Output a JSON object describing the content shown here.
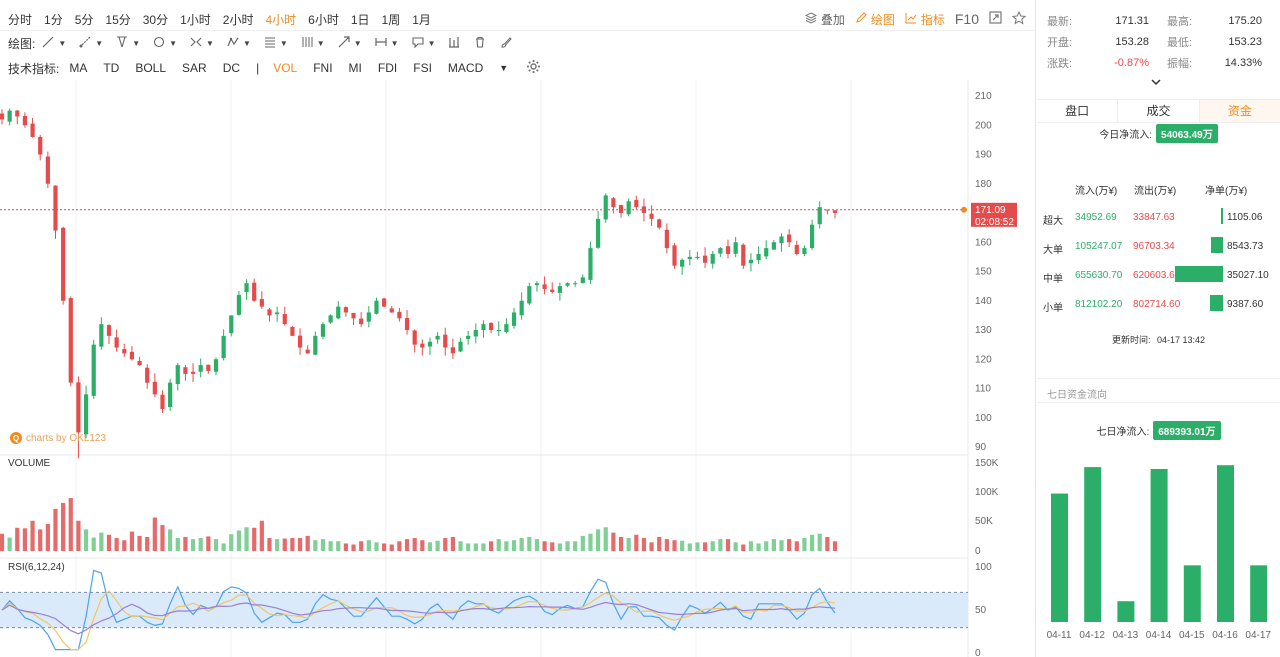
{
  "toolbar": {
    "timeframes": [
      {
        "label": "分时",
        "active": false
      },
      {
        "label": "1分",
        "active": false
      },
      {
        "label": "5分",
        "active": false
      },
      {
        "label": "15分",
        "active": false
      },
      {
        "label": "30分",
        "active": false
      },
      {
        "label": "1小时",
        "active": false
      },
      {
        "label": "2小时",
        "active": false
      },
      {
        "label": "4小时",
        "active": true
      },
      {
        "label": "6小时",
        "active": false
      },
      {
        "label": "1日",
        "active": false
      },
      {
        "label": "1周",
        "active": false
      },
      {
        "label": "1月",
        "active": false
      }
    ],
    "overlay_label": "叠加",
    "draw_label": "绘图",
    "indicator_label": "指标",
    "f10_label": "F10",
    "drawing_tools_label": "绘图:",
    "indicators_label": "技术指标:",
    "indicators": [
      {
        "label": "MA",
        "active": false
      },
      {
        "label": "TD",
        "active": false
      },
      {
        "label": "BOLL",
        "active": false
      },
      {
        "label": "SAR",
        "active": false
      },
      {
        "label": "DC",
        "active": false
      },
      {
        "label": "VOL",
        "active": true
      },
      {
        "label": "FNI",
        "active": false
      },
      {
        "label": "MI",
        "active": false
      },
      {
        "label": "FDI",
        "active": false
      },
      {
        "label": "FSI",
        "active": false
      },
      {
        "label": "MACD",
        "active": false
      }
    ],
    "drawing_tools": [
      "line-tool-icon",
      "ray-tool-icon",
      "channel-tool-icon",
      "shape-tool-icon",
      "fib-tool-icon",
      "pattern-tool-icon",
      "gann-tool-icon",
      "parallel-tool-icon",
      "arrow-tool-icon",
      "measure-tool-icon",
      "text-tool-icon",
      "bar-tool-icon",
      "trash-icon",
      "brush-icon"
    ]
  },
  "chart": {
    "watermark": "charts by OKL123",
    "price_axis": [
      "210",
      "200",
      "190",
      "180",
      "170",
      "160",
      "150",
      "140",
      "130",
      "120",
      "110",
      "100",
      "90"
    ],
    "current_price": "171.09",
    "countdown": "02:08:52",
    "volume_label": "VOLUME",
    "volume_axis": [
      "150K",
      "100K",
      "50K",
      "0"
    ],
    "rsi_label": "RSI(6,12,24)",
    "rsi_axis": [
      "100",
      "50",
      "0"
    ],
    "colors": {
      "up": "#e64b4b",
      "down": "#2bae67",
      "accent": "#f08b1f"
    }
  },
  "chart_data": {
    "type": "candlestick",
    "price_range": [
      90,
      210
    ],
    "current_price": 171.09,
    "closes": [
      202,
      205,
      203,
      200,
      196,
      190,
      180,
      164,
      140,
      112,
      95,
      108,
      125,
      132,
      128,
      124,
      122,
      120,
      118,
      112,
      108,
      103,
      112,
      118,
      115,
      115,
      118,
      116,
      120,
      128,
      135,
      142,
      146,
      140,
      138,
      135,
      136,
      132,
      128,
      124,
      122,
      128,
      132,
      135,
      138,
      136,
      134,
      132,
      136,
      140,
      138,
      136,
      134,
      130,
      125,
      124,
      126,
      128,
      124,
      122,
      126,
      128,
      130,
      132,
      130,
      130,
      132,
      136,
      140,
      145,
      146,
      144,
      143,
      145,
      146,
      146,
      148,
      158,
      168,
      176,
      172,
      170,
      174,
      172,
      170,
      168,
      165,
      158,
      152,
      154,
      155,
      155,
      153,
      156,
      158,
      156,
      160,
      152,
      154,
      156,
      158,
      160,
      162,
      160,
      156,
      158,
      166,
      172,
      171,
      170
    ],
    "volume_range": [
      0,
      150000
    ],
    "volumes": [
      32,
      25,
      43,
      42,
      56,
      40,
      50,
      78,
      89,
      98,
      56,
      40,
      25,
      34,
      30,
      24,
      20,
      36,
      28,
      26,
      62,
      48,
      40,
      24,
      26,
      22,
      24,
      27,
      22,
      14,
      31,
      38,
      44,
      43,
      56,
      24,
      22,
      23,
      24,
      24,
      28,
      20,
      22,
      18,
      18,
      14,
      12,
      18,
      20,
      16,
      14,
      12,
      18,
      22,
      24,
      20,
      16,
      19,
      24,
      26,
      18,
      14,
      14,
      14,
      18,
      22,
      18,
      20,
      24,
      26,
      22,
      18,
      16,
      14,
      18,
      18,
      28,
      32,
      40,
      44,
      34,
      26,
      24,
      30,
      24,
      16,
      26,
      22,
      20,
      19,
      14,
      16,
      16,
      18,
      22,
      22,
      16,
      12,
      18,
      14,
      18,
      22,
      20,
      22,
      18,
      24,
      30,
      32,
      26,
      18
    ],
    "rsi_range": [
      0,
      100
    ],
    "rsi_levels": [
      30,
      70
    ],
    "seven_day": {
      "type": "bar",
      "categories": [
        "04-11",
        "04-12",
        "04-13",
        "04-14",
        "04-15",
        "04-16",
        "04-17"
      ],
      "values": [
        68,
        82,
        11,
        81,
        30,
        83,
        30
      ]
    }
  },
  "quote": {
    "last_label": "最新:",
    "last": "171.31",
    "high_label": "最高:",
    "high": "175.20",
    "open_label": "开盘:",
    "open": "153.28",
    "low_label": "最低:",
    "low": "153.23",
    "change_label": "涨跌:",
    "change": "-0.87%",
    "amplitude_label": "振幅:",
    "amplitude": "14.33%"
  },
  "panel_tabs": [
    {
      "label": "盘口",
      "active": false
    },
    {
      "label": "成交",
      "active": false
    },
    {
      "label": "资金",
      "active": true
    }
  ],
  "funds": {
    "today_label": "今日净流入:",
    "today_value": "54063.49万",
    "col_in": "流入(万¥)",
    "col_out": "流出(万¥)",
    "col_net": "净单(万¥)",
    "rows": [
      {
        "label": "超大",
        "in": "34952.69",
        "out": "33847.63",
        "net": "1105.06",
        "net_value": 1105.06
      },
      {
        "label": "大单",
        "in": "105247.07",
        "out": "96703.34",
        "net": "8543.73",
        "net_value": 8543.73
      },
      {
        "label": "中单",
        "in": "655630.70",
        "out": "620603.60",
        "net": "35027.10",
        "net_value": 35027.1
      },
      {
        "label": "小单",
        "in": "812102.20",
        "out": "802714.60",
        "net": "9387.60",
        "net_value": 9387.6
      }
    ],
    "updated_label": "更新时间:",
    "updated_time": "04-17 13:42",
    "seven_title": "七日资金流向",
    "seven_label": "七日净流入:",
    "seven_value": "689393.01万"
  }
}
